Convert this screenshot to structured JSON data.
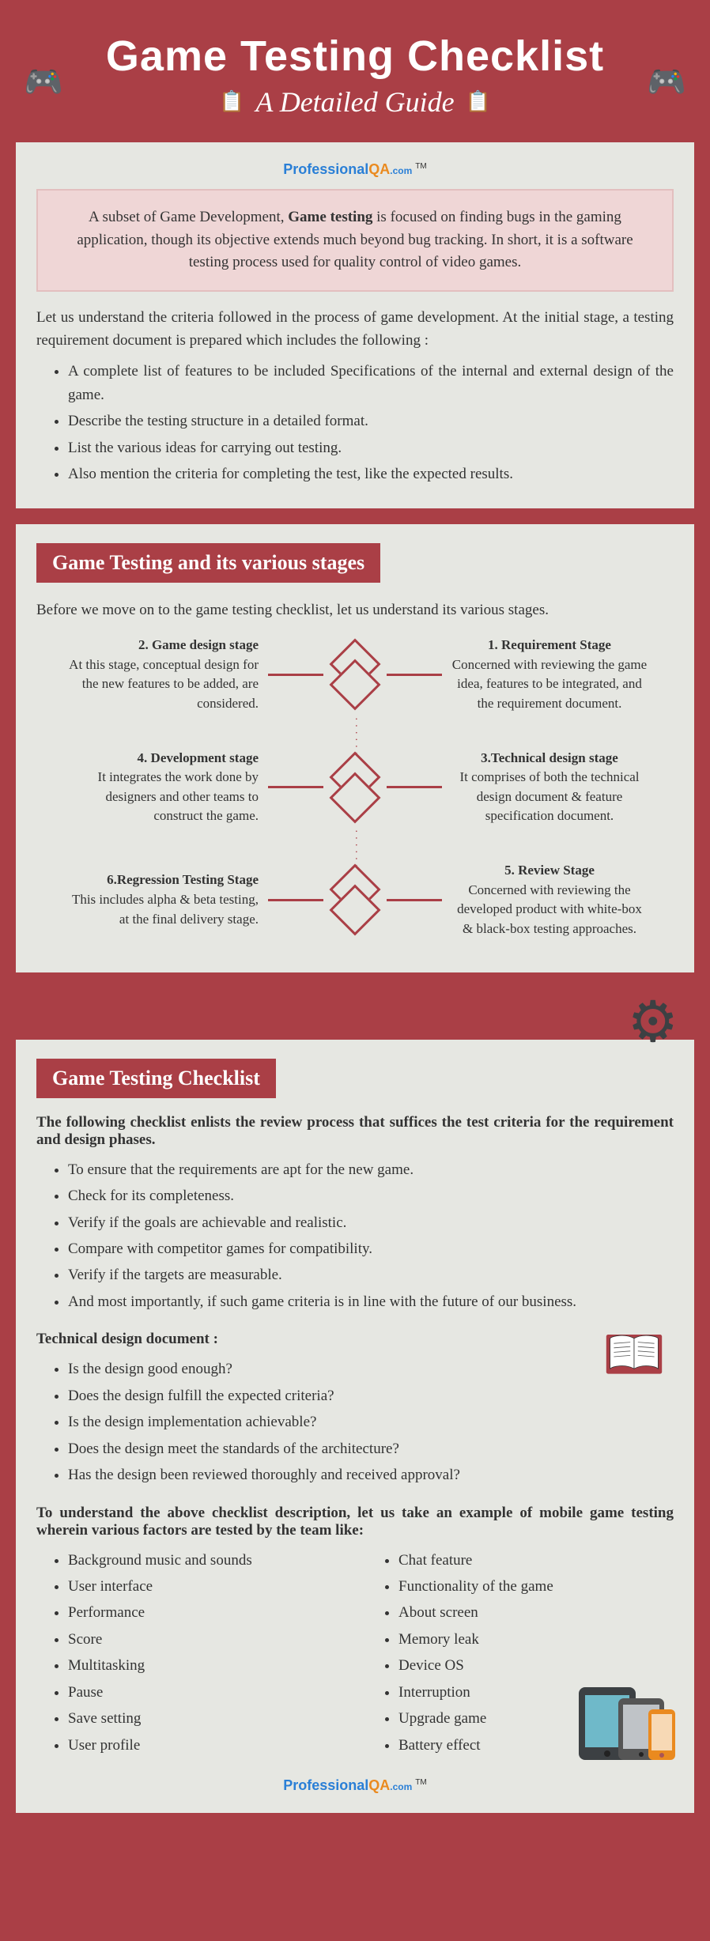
{
  "colors": {
    "primary": "#aa3f46",
    "panel_bg": "#e6e7e2",
    "intro_bg": "#efd6d6",
    "intro_border": "#e3bfbf",
    "text": "#333333",
    "white": "#ffffff",
    "accent_yellow": "#f7c948",
    "logo_blue": "#2a7fd6",
    "logo_orange": "#ea8a1f",
    "gear": "#3c4043"
  },
  "header": {
    "title": "Game Testing Checklist",
    "subtitle": "A Detailed Guide"
  },
  "logo": {
    "p": "Professional",
    "qa": "QA",
    "com": ".com",
    "tm": "TM"
  },
  "intro_before": "A subset of Game Development, ",
  "intro_bold": "Game testing",
  "intro_after": " is focused on finding bugs in the gaming application, though its objective extends much beyond bug tracking. In short, it is a software testing process used for quality control of video games.",
  "criteria_intro": "Let us understand the criteria followed in the process of game development. At the initial stage, a testing requirement document is prepared which includes the following :",
  "criteria_bullets": [
    "A complete list of features to be included Specifications of the internal and external design of the game.",
    "Describe the testing structure in a detailed format.",
    "List the various ideas for carrying out testing.",
    "Also mention the criteria for completing the test, like the expected results."
  ],
  "section1_title": "Game Testing and its various stages",
  "stages_intro": "Before we move on to the game testing checklist, let us understand its various stages.",
  "stages": {
    "s1": {
      "title": "1. Requirement Stage",
      "body": "Concerned with reviewing the game idea, features to be integrated, and the requirement document."
    },
    "s2": {
      "title": "2. Game design stage",
      "body": "At this stage, conceptual design for the new features to be added, are considered."
    },
    "s3": {
      "title": "3.Technical design stage",
      "body": "It comprises of both the technical design document & feature specification document."
    },
    "s4": {
      "title": "4. Development stage",
      "body": "It integrates the work done by designers and other teams to construct the game."
    },
    "s5": {
      "title": "5. Review Stage",
      "body": "Concerned with reviewing the developed product with white-box & black-box testing approaches."
    },
    "s6": {
      "title": "6.Regression Testing Stage",
      "body": "This includes alpha & beta testing, at the final delivery stage."
    }
  },
  "section2_title": "Game Testing Checklist",
  "checklist_intro": "The following checklist enlists the review process that suffices the test criteria for the requirement and design phases.",
  "checklist_bullets": [
    "To ensure that the requirements are apt for the new game.",
    "Check for its completeness.",
    "Verify if the goals are achievable and realistic.",
    "Compare with competitor games for compatibility.",
    "Verify if the targets are measurable.",
    "And most importantly, if such game criteria is in line with the future of our business."
  ],
  "tech_heading": "Technical design document :",
  "tech_bullets": [
    "Is the design good enough?",
    "Does the design fulfill the expected criteria?",
    "Is the design implementation achievable?",
    "Does the design meet the standards of the architecture?",
    "Has the design been reviewed thoroughly and received approval?"
  ],
  "mobile_intro": "To understand the above checklist description, let us take an example of mobile game testing wherein various factors are tested by the team like:",
  "mobile_col1": [
    "Background music and sounds",
    "User interface",
    "Performance",
    "Score",
    "Multitasking",
    "Pause",
    "Save setting",
    "User profile"
  ],
  "mobile_col2": [
    "Chat feature",
    "Functionality of the game",
    "About screen",
    "Memory leak",
    "Device OS",
    "Interruption",
    "Upgrade game",
    "Battery effect"
  ]
}
